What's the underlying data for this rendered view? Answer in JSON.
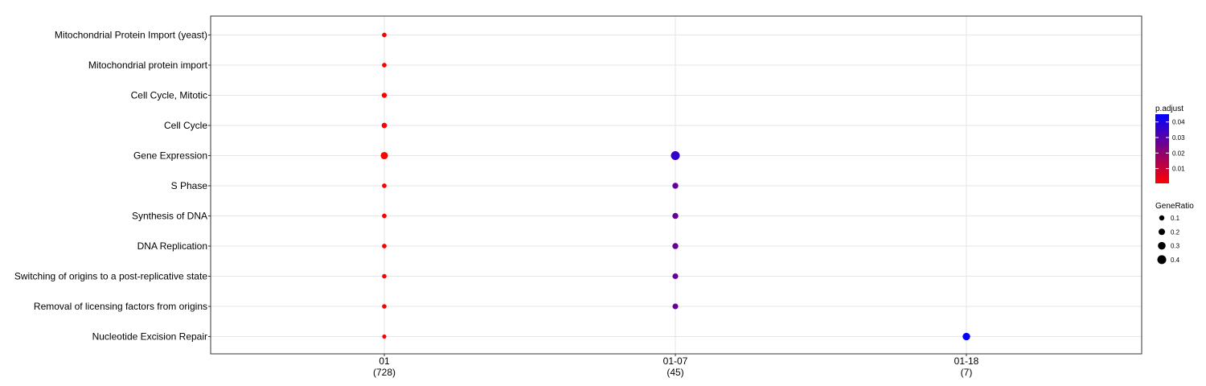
{
  "chart_data": {
    "type": "scatter",
    "x_categories": [
      {
        "label": "01",
        "count": "(728)"
      },
      {
        "label": "01-07",
        "count": "(45)"
      },
      {
        "label": "01-18",
        "count": "(7)"
      }
    ],
    "y_categories": [
      "Mitochondrial Protein Import (yeast)",
      "Mitochondrial protein import",
      "Cell Cycle, Mitotic",
      "Cell Cycle",
      "Gene Expression",
      "S Phase",
      "Synthesis of DNA",
      "DNA Replication",
      "Switching of origins to a post-replicative state",
      "Removal of licensing factors from origins",
      "Nucleotide Excision Repair"
    ],
    "points": [
      {
        "x": "01",
        "y": "Mitochondrial Protein Import (yeast)",
        "gene_ratio": 0.05,
        "p_adjust": 0.0005
      },
      {
        "x": "01",
        "y": "Mitochondrial protein import",
        "gene_ratio": 0.05,
        "p_adjust": 0.0005
      },
      {
        "x": "01",
        "y": "Cell Cycle, Mitotic",
        "gene_ratio": 0.1,
        "p_adjust": 0.0005
      },
      {
        "x": "01",
        "y": "Cell Cycle",
        "gene_ratio": 0.11,
        "p_adjust": 0.0005
      },
      {
        "x": "01",
        "y": "Gene Expression",
        "gene_ratio": 0.27,
        "p_adjust": 0.0005
      },
      {
        "x": "01",
        "y": "S Phase",
        "gene_ratio": 0.05,
        "p_adjust": 0.0005
      },
      {
        "x": "01",
        "y": "Synthesis of DNA",
        "gene_ratio": 0.05,
        "p_adjust": 0.0005
      },
      {
        "x": "01",
        "y": "DNA Replication",
        "gene_ratio": 0.05,
        "p_adjust": 0.0005
      },
      {
        "x": "01",
        "y": "Switching of origins to a post-replicative state",
        "gene_ratio": 0.04,
        "p_adjust": 0.0005
      },
      {
        "x": "01",
        "y": "Removal of licensing factors from origins",
        "gene_ratio": 0.04,
        "p_adjust": 0.0005
      },
      {
        "x": "01",
        "y": "Nucleotide Excision Repair",
        "gene_ratio": 0.01,
        "p_adjust": 0.0005
      },
      {
        "x": "01-07",
        "y": "Gene Expression",
        "gene_ratio": 0.4,
        "p_adjust": 0.036
      },
      {
        "x": "01-07",
        "y": "S Phase",
        "gene_ratio": 0.16,
        "p_adjust": 0.027
      },
      {
        "x": "01-07",
        "y": "Synthesis of DNA",
        "gene_ratio": 0.16,
        "p_adjust": 0.027
      },
      {
        "x": "01-07",
        "y": "DNA Replication",
        "gene_ratio": 0.16,
        "p_adjust": 0.027
      },
      {
        "x": "01-07",
        "y": "Switching of origins to a post-replicative state",
        "gene_ratio": 0.14,
        "p_adjust": 0.027
      },
      {
        "x": "01-07",
        "y": "Removal of licensing factors from origins",
        "gene_ratio": 0.14,
        "p_adjust": 0.027
      },
      {
        "x": "01-18",
        "y": "Nucleotide Excision Repair",
        "gene_ratio": 0.29,
        "p_adjust": 0.045
      }
    ],
    "color_legend": {
      "title": "p.adjust",
      "ticks": [
        0.01,
        0.02,
        0.03,
        0.04
      ],
      "tick_labels": [
        "0.01",
        "0.02",
        "0.03",
        "0.04"
      ],
      "range": [
        0.0005,
        0.045
      ],
      "low_color": "#FF0000",
      "high_color": "#0000FF"
    },
    "size_legend": {
      "title": "GeneRatio",
      "values": [
        0.1,
        0.2,
        0.3,
        0.4
      ],
      "labels": [
        "0.1",
        "0.2",
        "0.3",
        "0.4"
      ]
    },
    "grid": true,
    "legend_position": "right"
  }
}
